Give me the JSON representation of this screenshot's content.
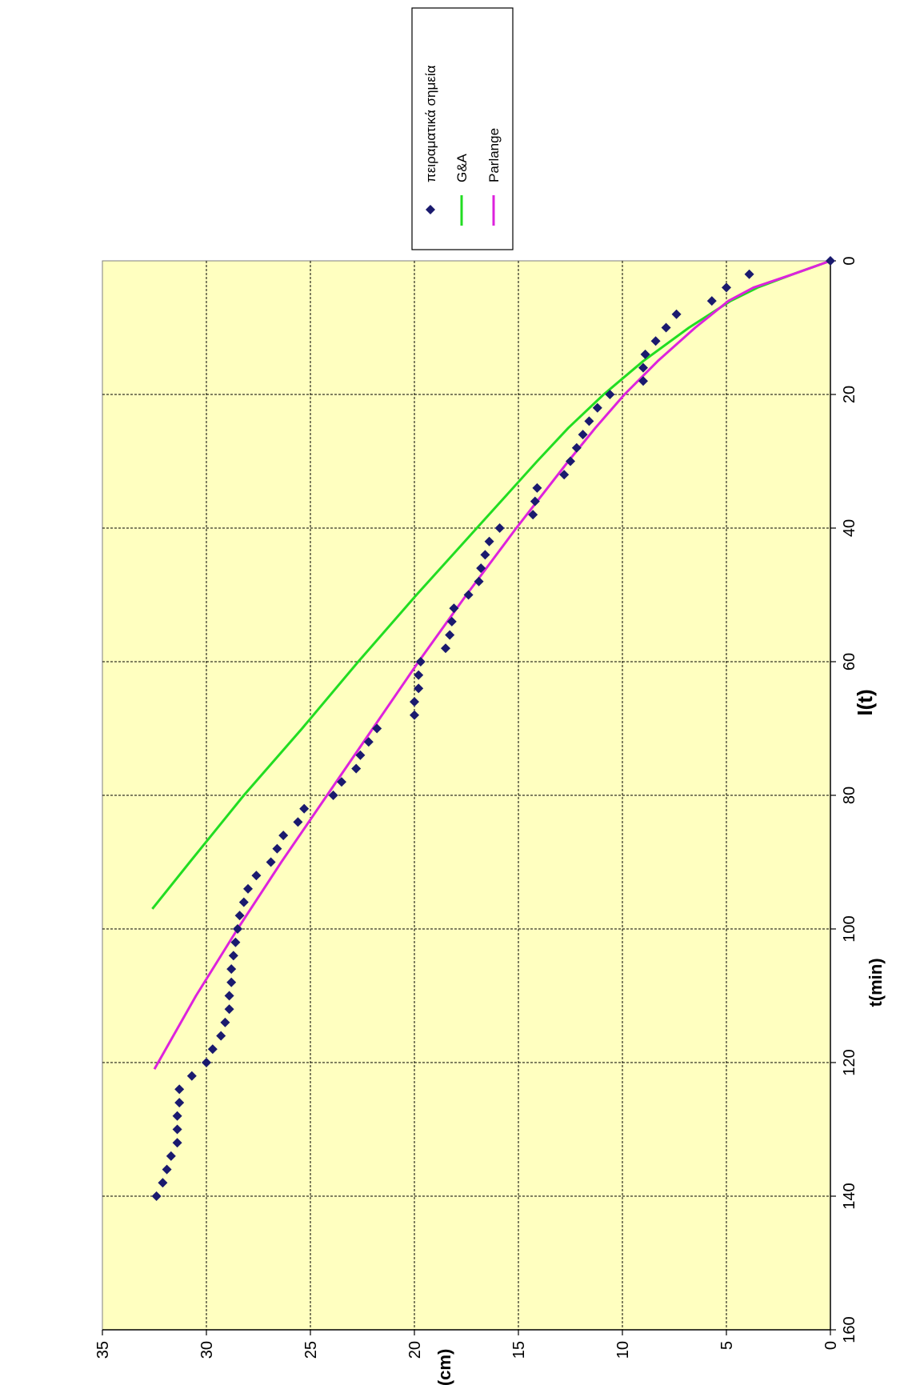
{
  "chart_data": {
    "type": "scatter",
    "title": "I(t)",
    "xlabel": "t(min)",
    "ylabel": "I(cm)",
    "xlim": [
      0,
      160
    ],
    "ylim": [
      0,
      35
    ],
    "x_ticks": [
      0,
      20,
      40,
      60,
      80,
      100,
      120,
      140,
      160
    ],
    "y_ticks": [
      0,
      5,
      10,
      15,
      20,
      25,
      30,
      35
    ],
    "grid": true,
    "plot_background": "#ffffc0",
    "legend_position": "right",
    "series": [
      {
        "name": "πειραματικά σημεία",
        "kind": "scatter",
        "marker": "diamond",
        "color": "#1a1a6e",
        "points": [
          [
            0,
            0
          ],
          [
            2,
            3.9
          ],
          [
            4,
            5
          ],
          [
            6,
            5.7
          ],
          [
            8,
            7.4
          ],
          [
            10,
            7.9
          ],
          [
            12,
            8.4
          ],
          [
            14,
            8.9
          ],
          [
            16,
            9
          ],
          [
            18,
            9
          ],
          [
            20,
            10.6
          ],
          [
            22,
            11.2
          ],
          [
            24,
            11.6
          ],
          [
            26,
            11.9
          ],
          [
            28,
            12.2
          ],
          [
            30,
            12.5
          ],
          [
            32,
            12.8
          ],
          [
            34,
            14.1
          ],
          [
            36,
            14.2
          ],
          [
            38,
            14.3
          ],
          [
            40,
            15.9
          ],
          [
            42,
            16.4
          ],
          [
            44,
            16.6
          ],
          [
            46,
            16.8
          ],
          [
            48,
            16.9
          ],
          [
            50,
            17.4
          ],
          [
            52,
            18.1
          ],
          [
            54,
            18.2
          ],
          [
            56,
            18.3
          ],
          [
            58,
            18.5
          ],
          [
            60,
            19.7
          ],
          [
            62,
            19.8
          ],
          [
            64,
            19.8
          ],
          [
            66,
            20
          ],
          [
            68,
            20
          ],
          [
            70,
            21.8
          ],
          [
            72,
            22.2
          ],
          [
            74,
            22.6
          ],
          [
            76,
            22.8
          ],
          [
            78,
            23.5
          ],
          [
            80,
            23.9
          ],
          [
            82,
            25.3
          ],
          [
            84,
            25.6
          ],
          [
            86,
            26.3
          ],
          [
            88,
            26.6
          ],
          [
            90,
            26.9
          ],
          [
            92,
            27.6
          ],
          [
            94,
            28
          ],
          [
            96,
            28.2
          ],
          [
            98,
            28.4
          ],
          [
            100,
            28.5
          ],
          [
            102,
            28.6
          ],
          [
            104,
            28.7
          ],
          [
            106,
            28.8
          ],
          [
            108,
            28.8
          ],
          [
            110,
            28.9
          ],
          [
            112,
            28.9
          ],
          [
            114,
            29.1
          ],
          [
            116,
            29.3
          ],
          [
            118,
            29.7
          ],
          [
            120,
            30
          ],
          [
            122,
            30.7
          ],
          [
            124,
            31.3
          ],
          [
            126,
            31.3
          ],
          [
            128,
            31.4
          ],
          [
            130,
            31.4
          ],
          [
            132,
            31.4
          ],
          [
            134,
            31.7
          ],
          [
            136,
            31.9
          ],
          [
            138,
            32.1
          ],
          [
            140,
            32.4
          ]
        ]
      },
      {
        "name": "G&A",
        "kind": "line",
        "color": "#22dd22",
        "points": [
          [
            0,
            0
          ],
          [
            2,
            1.8
          ],
          [
            4,
            3.5
          ],
          [
            6,
            4.8
          ],
          [
            10,
            6.8
          ],
          [
            15,
            9
          ],
          [
            20,
            10.9
          ],
          [
            25,
            12.6
          ],
          [
            30,
            14.1
          ],
          [
            40,
            17
          ],
          [
            50,
            19.9
          ],
          [
            60,
            22.7
          ],
          [
            70,
            25.4
          ],
          [
            80,
            28.2
          ],
          [
            90,
            30.8
          ],
          [
            97,
            32.6
          ]
        ]
      },
      {
        "name": "Parlange",
        "kind": "line",
        "color": "#dd22dd",
        "points": [
          [
            0,
            0
          ],
          [
            2,
            1.8
          ],
          [
            4,
            3.7
          ],
          [
            6,
            4.9
          ],
          [
            10,
            6.5
          ],
          [
            15,
            8.3
          ],
          [
            20,
            9.9
          ],
          [
            25,
            11.3
          ],
          [
            30,
            12.6
          ],
          [
            40,
            15.1
          ],
          [
            50,
            17.5
          ],
          [
            60,
            19.8
          ],
          [
            70,
            22
          ],
          [
            80,
            24.2
          ],
          [
            90,
            26.4
          ],
          [
            100,
            28.5
          ],
          [
            110,
            30.5
          ],
          [
            121,
            32.5
          ]
        ]
      }
    ]
  }
}
